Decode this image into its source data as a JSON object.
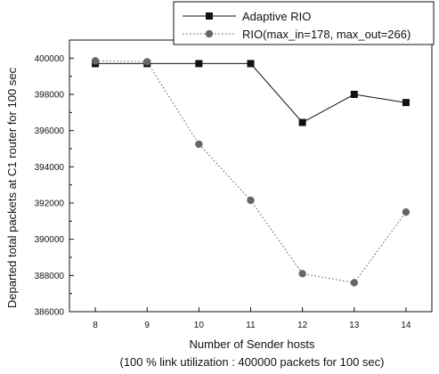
{
  "chart_data": {
    "type": "line",
    "title": "",
    "xlabel": "Number of Sender hosts",
    "xlabel_sub": "(100 % link utilization : 400000 packets for 100 sec)",
    "ylabel": "Departed total packets at C1 router for 100 sec",
    "x": [
      8,
      9,
      10,
      11,
      12,
      13,
      14
    ],
    "xlim": [
      7.5,
      14.5
    ],
    "ylim": [
      386000,
      401000
    ],
    "yticks": [
      386000,
      388000,
      390000,
      392000,
      394000,
      396000,
      398000,
      400000
    ],
    "grid": false,
    "legend_position": "top-right",
    "series": [
      {
        "name": "Adaptive RIO",
        "values": [
          399700,
          399700,
          399700,
          399700,
          396450,
          398000,
          397550
        ],
        "marker": "square",
        "line_style": "solid",
        "color": "#111111"
      },
      {
        "name": "RIO(max_in=178, max_out=266)",
        "values": [
          399850,
          399800,
          395250,
          392150,
          388100,
          387600,
          391500
        ],
        "marker": "circle",
        "line_style": "dotted",
        "color": "#555555"
      }
    ]
  }
}
